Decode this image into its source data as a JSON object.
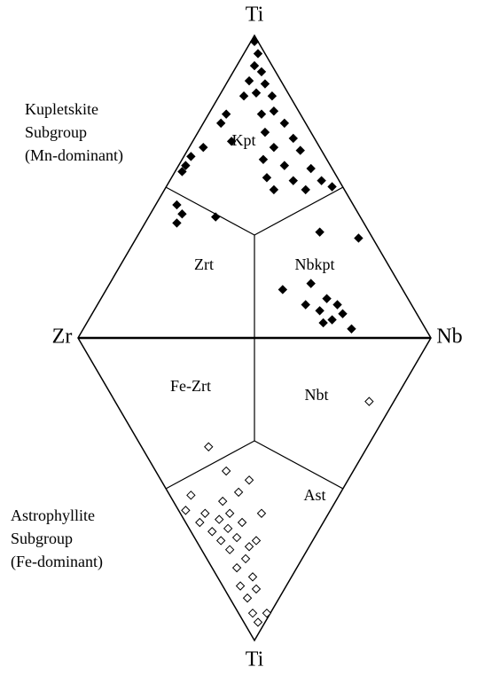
{
  "chart_data": {
    "type": "ternary-diamond",
    "apex_labels": [
      "Ti",
      "Zr",
      "Nb",
      "Ti"
    ],
    "field_labels": [
      "Kpt",
      "Zrt",
      "Nbkpt",
      "Fe-Zrt",
      "Nbt",
      "Ast"
    ],
    "group_labels": [
      [
        "Kupletskite",
        "Subgroup",
        "(Mn-dominant)"
      ],
      [
        "Astrophyllite",
        "Subgroup",
        "(Fe-dominant)"
      ]
    ],
    "upper": {
      "color": "#000000",
      "Ti": [
        0.98,
        0.94,
        0.9,
        0.88,
        0.85,
        0.84,
        0.81,
        0.8,
        0.8,
        0.75,
        0.74,
        0.71,
        0.68,
        0.66,
        0.63,
        0.62,
        0.59,
        0.57,
        0.56,
        0.53,
        0.52,
        0.52,
        0.5,
        0.49,
        0.49,
        0.71,
        0.74,
        0.65,
        0.6,
        0.57,
        0.63,
        0.55,
        0.44,
        0.41,
        0.38,
        0.4,
        0.35,
        0.33,
        0.16,
        0.18,
        0.13,
        0.11,
        0.09,
        0.06,
        0.08,
        0.05,
        0.03,
        0.11
      ],
      "Nb": [
        0.01,
        0.04,
        0.05,
        0.08,
        0.06,
        0.11,
        0.1,
        0.15,
        0.07,
        0.18,
        0.15,
        0.23,
        0.19,
        0.28,
        0.24,
        0.32,
        0.23,
        0.3,
        0.38,
        0.27,
        0.35,
        0.43,
        0.47,
        0.31,
        0.4,
        0.05,
        0.05,
        0.11,
        0.02,
        0.02,
        0.04,
        0.02,
        0.06,
        0.09,
        0.09,
        0.19,
        0.51,
        0.63,
        0.5,
        0.57,
        0.64,
        0.68,
        0.64,
        0.69,
        0.71,
        0.67,
        0.76,
        0.59
      ]
    },
    "lower": {
      "color": "#000000",
      "Ti": [
        0.36,
        0.44,
        0.47,
        0.51,
        0.54,
        0.52,
        0.57,
        0.58,
        0.6,
        0.58,
        0.61,
        0.58,
        0.63,
        0.66,
        0.64,
        0.67,
        0.7,
        0.73,
        0.76,
        0.79,
        0.82,
        0.83,
        0.86,
        0.91,
        0.94,
        0.91,
        0.21,
        0.61,
        0.67,
        0.69
      ],
      "Nb": [
        0.19,
        0.2,
        0.25,
        0.2,
        0.14,
        0.06,
        0.02,
        0.07,
        0.1,
        0.14,
        0.16,
        0.23,
        0.11,
        0.12,
        0.06,
        0.17,
        0.08,
        0.11,
        0.07,
        0.1,
        0.05,
        0.09,
        0.05,
        0.04,
        0.04,
        0.08,
        0.72,
        0.04,
        0.07,
        0.14
      ]
    }
  }
}
